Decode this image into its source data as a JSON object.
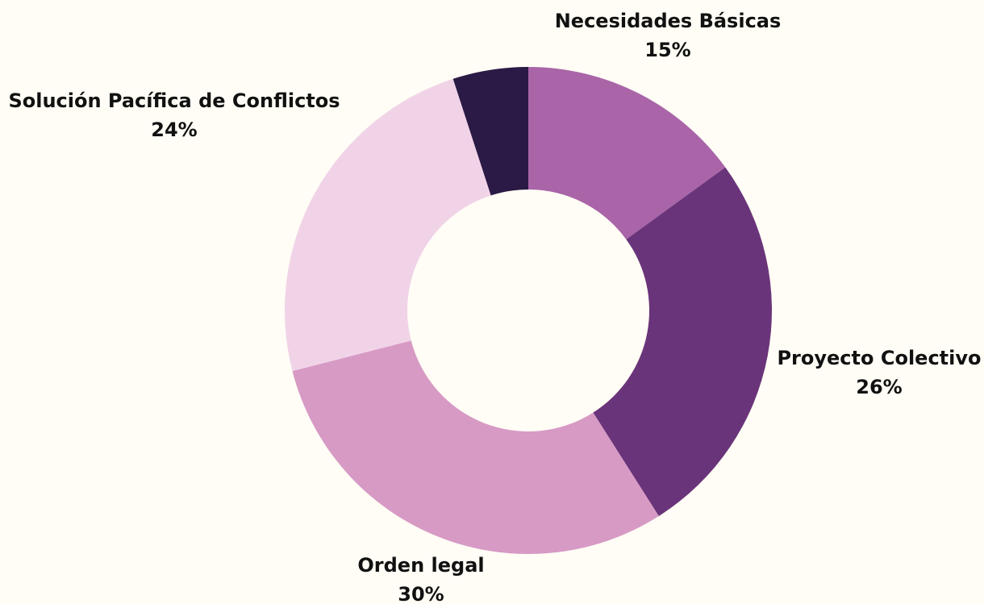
{
  "chart_data": {
    "type": "donut",
    "categories": [
      "Necesidades Básicas",
      "Proyecto Colectivo",
      "Orden legal",
      "Solución Pacífica de Conflictos",
      null
    ],
    "values": [
      15,
      26,
      30,
      24,
      5
    ],
    "value_labels": [
      "15%",
      "26%",
      "30%",
      "24%",
      null
    ],
    "colors": [
      "#a965a8",
      "#6a347a",
      "#d79ac5",
      "#f1d3e8",
      "#2a1a45"
    ]
  }
}
